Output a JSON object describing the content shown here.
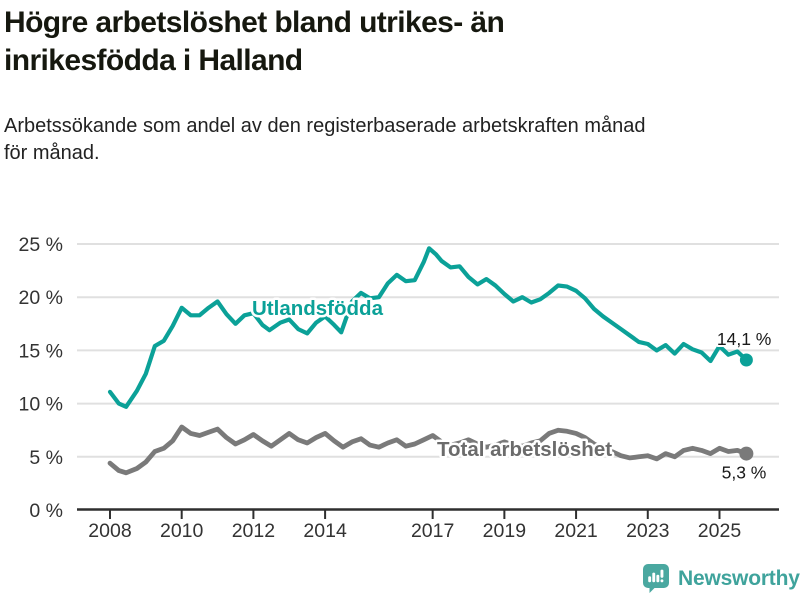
{
  "header": {
    "title_lines": [
      "Högre arbetslöshet bland utrikes- än",
      "inrikesfödda i Halland"
    ],
    "subtitle_lines": [
      "Arbetssökande som andel av den registerbaserade arbetskraften månad",
      "för månad."
    ]
  },
  "footer": {
    "brand": "Newsworthy"
  },
  "chart_data": {
    "type": "line",
    "title": "Högre arbetslöshet bland utrikes- än inrikesfödda i Halland",
    "subtitle": "Arbetssökande som andel av den registerbaserade arbetskraften månad för månad.",
    "xlabel": "",
    "ylabel": "",
    "xlim": [
      2007.08,
      2026.66
    ],
    "ylim": [
      0,
      25
    ],
    "grid": "horizontal",
    "legend_position": "inline-labels",
    "x_ticks": [
      2008,
      2010,
      2012,
      2014,
      2017,
      2019,
      2021,
      2023,
      2025
    ],
    "x_tick_labels": [
      "2008",
      "2010",
      "2012",
      "2014",
      "2017",
      "2019",
      "2021",
      "2023",
      "2025"
    ],
    "y_ticks": [
      0,
      5,
      10,
      15,
      20,
      25
    ],
    "y_tick_labels": [
      "0 %",
      "5 %",
      "10 %",
      "15 %",
      "20 %",
      "25 %"
    ],
    "colors": {
      "grid": "#e0e0e0",
      "axis": "#2f2f2f",
      "tick_text": "#333333",
      "end_label_text": "#1a1a1a"
    },
    "series": [
      {
        "name": "Utlandsfödda",
        "color": "#0ba198",
        "label_color": "#0ba198",
        "end_label": "14,1 %",
        "end_value": 14.1,
        "points": [
          [
            2008.0,
            11.1
          ],
          [
            2008.25,
            10.0
          ],
          [
            2008.45,
            9.7
          ],
          [
            2008.75,
            11.2
          ],
          [
            2009.0,
            12.8
          ],
          [
            2009.25,
            15.4
          ],
          [
            2009.5,
            15.9
          ],
          [
            2009.75,
            17.3
          ],
          [
            2010.0,
            19.0
          ],
          [
            2010.25,
            18.3
          ],
          [
            2010.5,
            18.3
          ],
          [
            2010.75,
            19.0
          ],
          [
            2011.0,
            19.6
          ],
          [
            2011.25,
            18.4
          ],
          [
            2011.5,
            17.5
          ],
          [
            2011.75,
            18.3
          ],
          [
            2012.0,
            18.5
          ],
          [
            2012.25,
            17.4
          ],
          [
            2012.45,
            16.9
          ],
          [
            2012.75,
            17.6
          ],
          [
            2013.0,
            17.9
          ],
          [
            2013.25,
            17.0
          ],
          [
            2013.5,
            16.6
          ],
          [
            2013.75,
            17.6
          ],
          [
            2014.0,
            18.2
          ],
          [
            2014.25,
            17.4
          ],
          [
            2014.45,
            16.7
          ],
          [
            2014.75,
            19.6
          ],
          [
            2015.0,
            20.4
          ],
          [
            2015.25,
            19.9
          ],
          [
            2015.5,
            20.0
          ],
          [
            2015.75,
            21.3
          ],
          [
            2016.0,
            22.1
          ],
          [
            2016.25,
            21.5
          ],
          [
            2016.5,
            21.6
          ],
          [
            2016.75,
            23.3
          ],
          [
            2016.9,
            24.6
          ],
          [
            2017.1,
            24.0
          ],
          [
            2017.25,
            23.4
          ],
          [
            2017.5,
            22.8
          ],
          [
            2017.75,
            22.9
          ],
          [
            2018.0,
            21.9
          ],
          [
            2018.25,
            21.2
          ],
          [
            2018.5,
            21.7
          ],
          [
            2018.75,
            21.1
          ],
          [
            2019.0,
            20.3
          ],
          [
            2019.25,
            19.6
          ],
          [
            2019.5,
            20.0
          ],
          [
            2019.75,
            19.5
          ],
          [
            2020.0,
            19.8
          ],
          [
            2020.25,
            20.4
          ],
          [
            2020.5,
            21.1
          ],
          [
            2020.75,
            21.0
          ],
          [
            2021.0,
            20.6
          ],
          [
            2021.25,
            19.9
          ],
          [
            2021.5,
            18.9
          ],
          [
            2021.75,
            18.2
          ],
          [
            2022.0,
            17.6
          ],
          [
            2022.25,
            17.0
          ],
          [
            2022.5,
            16.4
          ],
          [
            2022.75,
            15.8
          ],
          [
            2023.0,
            15.6
          ],
          [
            2023.25,
            15.0
          ],
          [
            2023.5,
            15.5
          ],
          [
            2023.75,
            14.7
          ],
          [
            2024.0,
            15.6
          ],
          [
            2024.25,
            15.1
          ],
          [
            2024.5,
            14.8
          ],
          [
            2024.75,
            14.0
          ],
          [
            2025.0,
            15.4
          ],
          [
            2025.25,
            14.6
          ],
          [
            2025.5,
            14.9
          ],
          [
            2025.75,
            14.1
          ]
        ]
      },
      {
        "name": "Total arbetslöshet",
        "color": "#7a7a7a",
        "label_color": "#6b6b6b",
        "end_label": "5,3 %",
        "end_value": 5.3,
        "points": [
          [
            2008.0,
            4.4
          ],
          [
            2008.25,
            3.7
          ],
          [
            2008.45,
            3.5
          ],
          [
            2008.75,
            3.9
          ],
          [
            2009.0,
            4.5
          ],
          [
            2009.25,
            5.5
          ],
          [
            2009.5,
            5.8
          ],
          [
            2009.75,
            6.5
          ],
          [
            2010.0,
            7.8
          ],
          [
            2010.25,
            7.2
          ],
          [
            2010.5,
            7.0
          ],
          [
            2010.75,
            7.3
          ],
          [
            2011.0,
            7.6
          ],
          [
            2011.25,
            6.8
          ],
          [
            2011.5,
            6.2
          ],
          [
            2011.75,
            6.6
          ],
          [
            2012.0,
            7.1
          ],
          [
            2012.25,
            6.5
          ],
          [
            2012.5,
            6.0
          ],
          [
            2012.75,
            6.6
          ],
          [
            2013.0,
            7.2
          ],
          [
            2013.25,
            6.6
          ],
          [
            2013.5,
            6.3
          ],
          [
            2013.75,
            6.8
          ],
          [
            2014.0,
            7.2
          ],
          [
            2014.25,
            6.5
          ],
          [
            2014.5,
            5.9
          ],
          [
            2014.75,
            6.4
          ],
          [
            2015.0,
            6.7
          ],
          [
            2015.25,
            6.1
          ],
          [
            2015.5,
            5.9
          ],
          [
            2015.75,
            6.3
          ],
          [
            2016.0,
            6.6
          ],
          [
            2016.25,
            6.0
          ],
          [
            2016.5,
            6.2
          ],
          [
            2016.75,
            6.6
          ],
          [
            2017.0,
            7.0
          ],
          [
            2017.25,
            6.4
          ],
          [
            2017.5,
            6.1
          ],
          [
            2017.75,
            6.3
          ],
          [
            2018.0,
            6.6
          ],
          [
            2018.25,
            6.2
          ],
          [
            2018.5,
            5.9
          ],
          [
            2018.75,
            6.1
          ],
          [
            2019.0,
            6.4
          ],
          [
            2019.25,
            6.1
          ],
          [
            2019.5,
            6.0
          ],
          [
            2019.75,
            6.3
          ],
          [
            2020.0,
            6.5
          ],
          [
            2020.25,
            7.2
          ],
          [
            2020.5,
            7.5
          ],
          [
            2020.75,
            7.4
          ],
          [
            2021.0,
            7.2
          ],
          [
            2021.25,
            6.8
          ],
          [
            2021.5,
            6.2
          ],
          [
            2021.75,
            5.8
          ],
          [
            2022.0,
            5.5
          ],
          [
            2022.25,
            5.1
          ],
          [
            2022.5,
            4.9
          ],
          [
            2022.75,
            5.0
          ],
          [
            2023.0,
            5.1
          ],
          [
            2023.25,
            4.8
          ],
          [
            2023.5,
            5.3
          ],
          [
            2023.75,
            5.0
          ],
          [
            2024.0,
            5.6
          ],
          [
            2024.25,
            5.8
          ],
          [
            2024.5,
            5.6
          ],
          [
            2024.75,
            5.3
          ],
          [
            2025.0,
            5.8
          ],
          [
            2025.25,
            5.5
          ],
          [
            2025.5,
            5.6
          ],
          [
            2025.75,
            5.3
          ]
        ]
      }
    ]
  }
}
